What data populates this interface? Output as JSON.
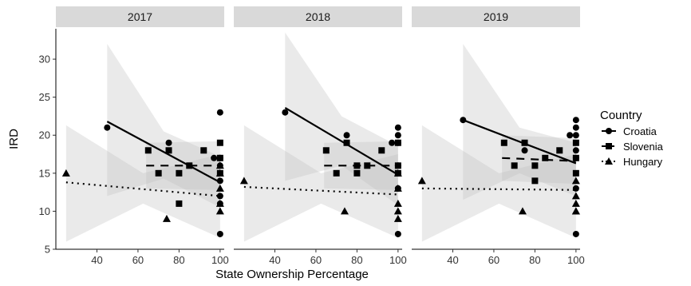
{
  "chart_data": {
    "type": "scatter",
    "xlabel": "State Ownership Percentage",
    "ylabel": "IRD",
    "xlim": [
      20,
      102
    ],
    "ylim": [
      5,
      34
    ],
    "x_ticks": [
      40,
      60,
      80,
      100
    ],
    "y_ticks": [
      5,
      10,
      15,
      20,
      25,
      30
    ],
    "grid": false,
    "facet_by": "year",
    "legend": {
      "title": "Country",
      "placement": "right",
      "entries": [
        {
          "name": "Croatia",
          "shape": "circle",
          "line": "solid"
        },
        {
          "name": "Slovenia",
          "shape": "square",
          "line": "dashed"
        },
        {
          "name": "Hungary",
          "shape": "triangle",
          "line": "dotted"
        }
      ]
    },
    "panels": [
      {
        "label": "2017",
        "series": [
          {
            "name": "Croatia",
            "points": [
              [
                45,
                21
              ],
              [
                75,
                19
              ],
              [
                100,
                23
              ],
              [
                100,
                16
              ],
              [
                100,
                17
              ],
              [
                100,
                14
              ],
              [
                100,
                12
              ],
              [
                100,
                11
              ],
              [
                100,
                7
              ],
              [
                97,
                17
              ]
            ],
            "fit": {
              "x": [
                45,
                100
              ],
              "y": [
                21.8,
                13.8
              ]
            },
            "band": {
              "x": [
                45,
                72.5,
                100
              ],
              "lower": [
                12.0,
                14.3,
                10.5
              ],
              "upper": [
                32.0,
                20.5,
                17.2
              ]
            }
          },
          {
            "name": "Slovenia",
            "points": [
              [
                65,
                18
              ],
              [
                70,
                15
              ],
              [
                75,
                18
              ],
              [
                80,
                15
              ],
              [
                80,
                11
              ],
              [
                85,
                16
              ],
              [
                92,
                18
              ],
              [
                100,
                19
              ],
              [
                100,
                17
              ],
              [
                100,
                15
              ]
            ],
            "fit": {
              "x": [
                64,
                100
              ],
              "y": [
                16,
                16
              ]
            },
            "band": {
              "x": [
                64,
                100
              ],
              "lower": [
                13.0,
                12.8
              ],
              "upper": [
                19.0,
                19.2
              ]
            }
          },
          {
            "name": "Hungary",
            "points": [
              [
                25,
                15
              ],
              [
                74,
                9
              ],
              [
                100,
                16
              ],
              [
                100,
                15
              ],
              [
                100,
                13
              ],
              [
                100,
                11
              ],
              [
                100,
                10
              ]
            ],
            "fit": {
              "x": [
                25,
                100
              ],
              "y": [
                13.8,
                12.0
              ]
            },
            "band": {
              "x": [
                25,
                62.5,
                100
              ],
              "lower": [
                6.0,
                11.0,
                6.5
              ],
              "upper": [
                21.3,
                15.0,
                17.5
              ]
            }
          }
        ]
      },
      {
        "label": "2018",
        "series": [
          {
            "name": "Croatia",
            "points": [
              [
                45,
                23
              ],
              [
                75,
                20
              ],
              [
                100,
                21
              ],
              [
                100,
                20
              ],
              [
                100,
                19
              ],
              [
                100,
                16
              ],
              [
                100,
                15
              ],
              [
                100,
                13
              ],
              [
                100,
                7
              ],
              [
                97,
                19
              ]
            ],
            "fit": {
              "x": [
                45,
                100
              ],
              "y": [
                23.6,
                14.8
              ]
            },
            "band": {
              "x": [
                45,
                72.5,
                100
              ],
              "lower": [
                14.0,
                16.0,
                10.8
              ],
              "upper": [
                33.5,
                22.5,
                18.6
              ]
            }
          },
          {
            "name": "Slovenia",
            "points": [
              [
                65,
                18
              ],
              [
                70,
                15
              ],
              [
                75,
                19
              ],
              [
                80,
                16
              ],
              [
                80,
                15
              ],
              [
                85,
                16
              ],
              [
                92,
                18
              ],
              [
                100,
                19
              ],
              [
                100,
                16
              ],
              [
                100,
                15
              ]
            ],
            "fit": {
              "x": [
                64,
                100
              ],
              "y": [
                16,
                16
              ]
            },
            "band": {
              "x": [
                64,
                100
              ],
              "lower": [
                13.0,
                12.8
              ],
              "upper": [
                19.0,
                19.2
              ]
            }
          },
          {
            "name": "Hungary",
            "points": [
              [
                25,
                14
              ],
              [
                74,
                10
              ],
              [
                100,
                15
              ],
              [
                100,
                13
              ],
              [
                100,
                11
              ],
              [
                100,
                10
              ],
              [
                100,
                9
              ]
            ],
            "fit": {
              "x": [
                25,
                100
              ],
              "y": [
                13.2,
                12.2
              ]
            },
            "band": {
              "x": [
                25,
                62.5,
                100
              ],
              "lower": [
                6.0,
                11.0,
                6.5
              ],
              "upper": [
                21.3,
                15.0,
                17.5
              ]
            }
          }
        ]
      },
      {
        "label": "2019",
        "series": [
          {
            "name": "Croatia",
            "points": [
              [
                45,
                22
              ],
              [
                75,
                18
              ],
              [
                100,
                22
              ],
              [
                100,
                21
              ],
              [
                100,
                20
              ],
              [
                100,
                18
              ],
              [
                100,
                17
              ],
              [
                100,
                13
              ],
              [
                100,
                7
              ],
              [
                97,
                20
              ]
            ],
            "fit": {
              "x": [
                45,
                100
              ],
              "y": [
                22.0,
                16.3
              ]
            },
            "band": {
              "x": [
                45,
                72.5,
                100
              ],
              "lower": [
                11.5,
                15.0,
                12.0
              ],
              "upper": [
                32.0,
                21.0,
                19.0
              ]
            }
          },
          {
            "name": "Slovenia",
            "points": [
              [
                65,
                19
              ],
              [
                70,
                16
              ],
              [
                75,
                19
              ],
              [
                80,
                16
              ],
              [
                80,
                14
              ],
              [
                85,
                17
              ],
              [
                92,
                18
              ],
              [
                100,
                19
              ],
              [
                100,
                17
              ],
              [
                100,
                15
              ]
            ],
            "fit": {
              "x": [
                64,
                100
              ],
              "y": [
                17.0,
                16.6
              ]
            },
            "band": {
              "x": [
                64,
                100
              ],
              "lower": [
                14.0,
                13.6
              ],
              "upper": [
                20.0,
                19.6
              ]
            }
          },
          {
            "name": "Hungary",
            "points": [
              [
                25,
                14
              ],
              [
                74,
                10
              ],
              [
                100,
                14
              ],
              [
                100,
                12
              ],
              [
                100,
                11
              ],
              [
                100,
                10
              ],
              [
                100,
                10
              ]
            ],
            "fit": {
              "x": [
                25,
                100
              ],
              "y": [
                13.0,
                12.8
              ]
            },
            "band": {
              "x": [
                25,
                62.5,
                100
              ],
              "lower": [
                6.0,
                11.0,
                6.5
              ],
              "upper": [
                21.3,
                15.0,
                17.5
              ]
            }
          }
        ]
      }
    ]
  }
}
